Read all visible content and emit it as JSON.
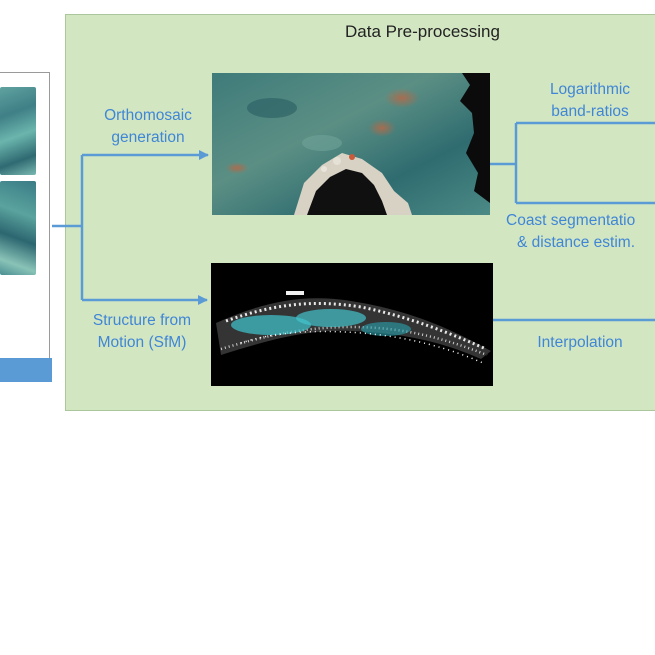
{
  "panel": {
    "title": "Data Pre-processing"
  },
  "labels": {
    "orthomosaic": [
      "Orthomosaic",
      "generation"
    ],
    "sfm": [
      "Structure from",
      "Motion (SfM)"
    ],
    "band_ratios": [
      "Logarithmic",
      "band-ratios"
    ],
    "coast": [
      "Coast segmentatio",
      "& distance estim."
    ],
    "interpolation": "Interpolation"
  },
  "colors": {
    "panel_bg": "#d3e6c2",
    "connector": "#5b9bd5",
    "label_text": "#3f86d6",
    "input_bar": "#5b9bd5"
  }
}
